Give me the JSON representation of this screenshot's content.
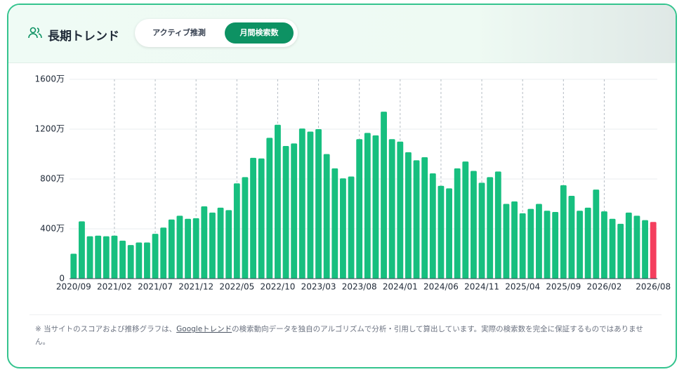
{
  "header": {
    "title": "長期トレンド",
    "tabs": [
      "アクティブ推測",
      "月間検索数"
    ]
  },
  "chart_data": {
    "type": "bar",
    "categories": [
      "2020/09",
      null,
      null,
      null,
      null,
      "2021/02",
      null,
      null,
      null,
      null,
      "2021/07",
      null,
      null,
      null,
      null,
      "2021/12",
      null,
      null,
      null,
      null,
      "2022/05",
      null,
      null,
      null,
      null,
      "2022/10",
      null,
      null,
      null,
      null,
      "2023/03",
      null,
      null,
      null,
      null,
      "2023/08",
      null,
      null,
      null,
      null,
      "2024/01",
      null,
      null,
      null,
      null,
      "2024/06",
      null,
      null,
      null,
      null,
      "2024/11",
      null,
      null,
      null,
      null,
      "2025/04",
      null,
      null,
      null,
      null,
      "2025/09",
      null,
      null,
      null,
      null,
      "2026/02",
      null,
      null,
      null,
      null,
      null,
      "2026/08"
    ],
    "values": [
      200,
      460,
      340,
      345,
      340,
      345,
      305,
      270,
      290,
      290,
      360,
      410,
      475,
      505,
      480,
      485,
      580,
      530,
      570,
      550,
      765,
      815,
      970,
      965,
      1130,
      1235,
      1065,
      1085,
      1205,
      1180,
      1200,
      1000,
      885,
      805,
      820,
      1120,
      1170,
      1150,
      1340,
      1120,
      1100,
      1015,
      950,
      975,
      845,
      745,
      725,
      885,
      940,
      865,
      770,
      815,
      860,
      600,
      620,
      525,
      560,
      600,
      545,
      535,
      750,
      665,
      545,
      570,
      715,
      540,
      480,
      440,
      530,
      505,
      470,
      455
    ],
    "color": "#17bf7f",
    "current_color": "#f43f5e",
    "ylim": [
      0,
      1600
    ],
    "yticks": [
      0,
      {
        "value": 400,
        "label": "400万"
      },
      {
        "value": 800,
        "label": "800万"
      },
      {
        "value": 1200,
        "label": "1200万"
      },
      {
        "value": 1600,
        "label": "1600万"
      }
    ],
    "grid": true
  },
  "note": [
    "※ 当サイトのスコアおよび推移グラフは、",
    "Googleトレンド",
    "の検索動向データを独自のアルゴリズムで分析・引用して算出しています。実際の検索数を完全に保証するものではありません。"
  ]
}
